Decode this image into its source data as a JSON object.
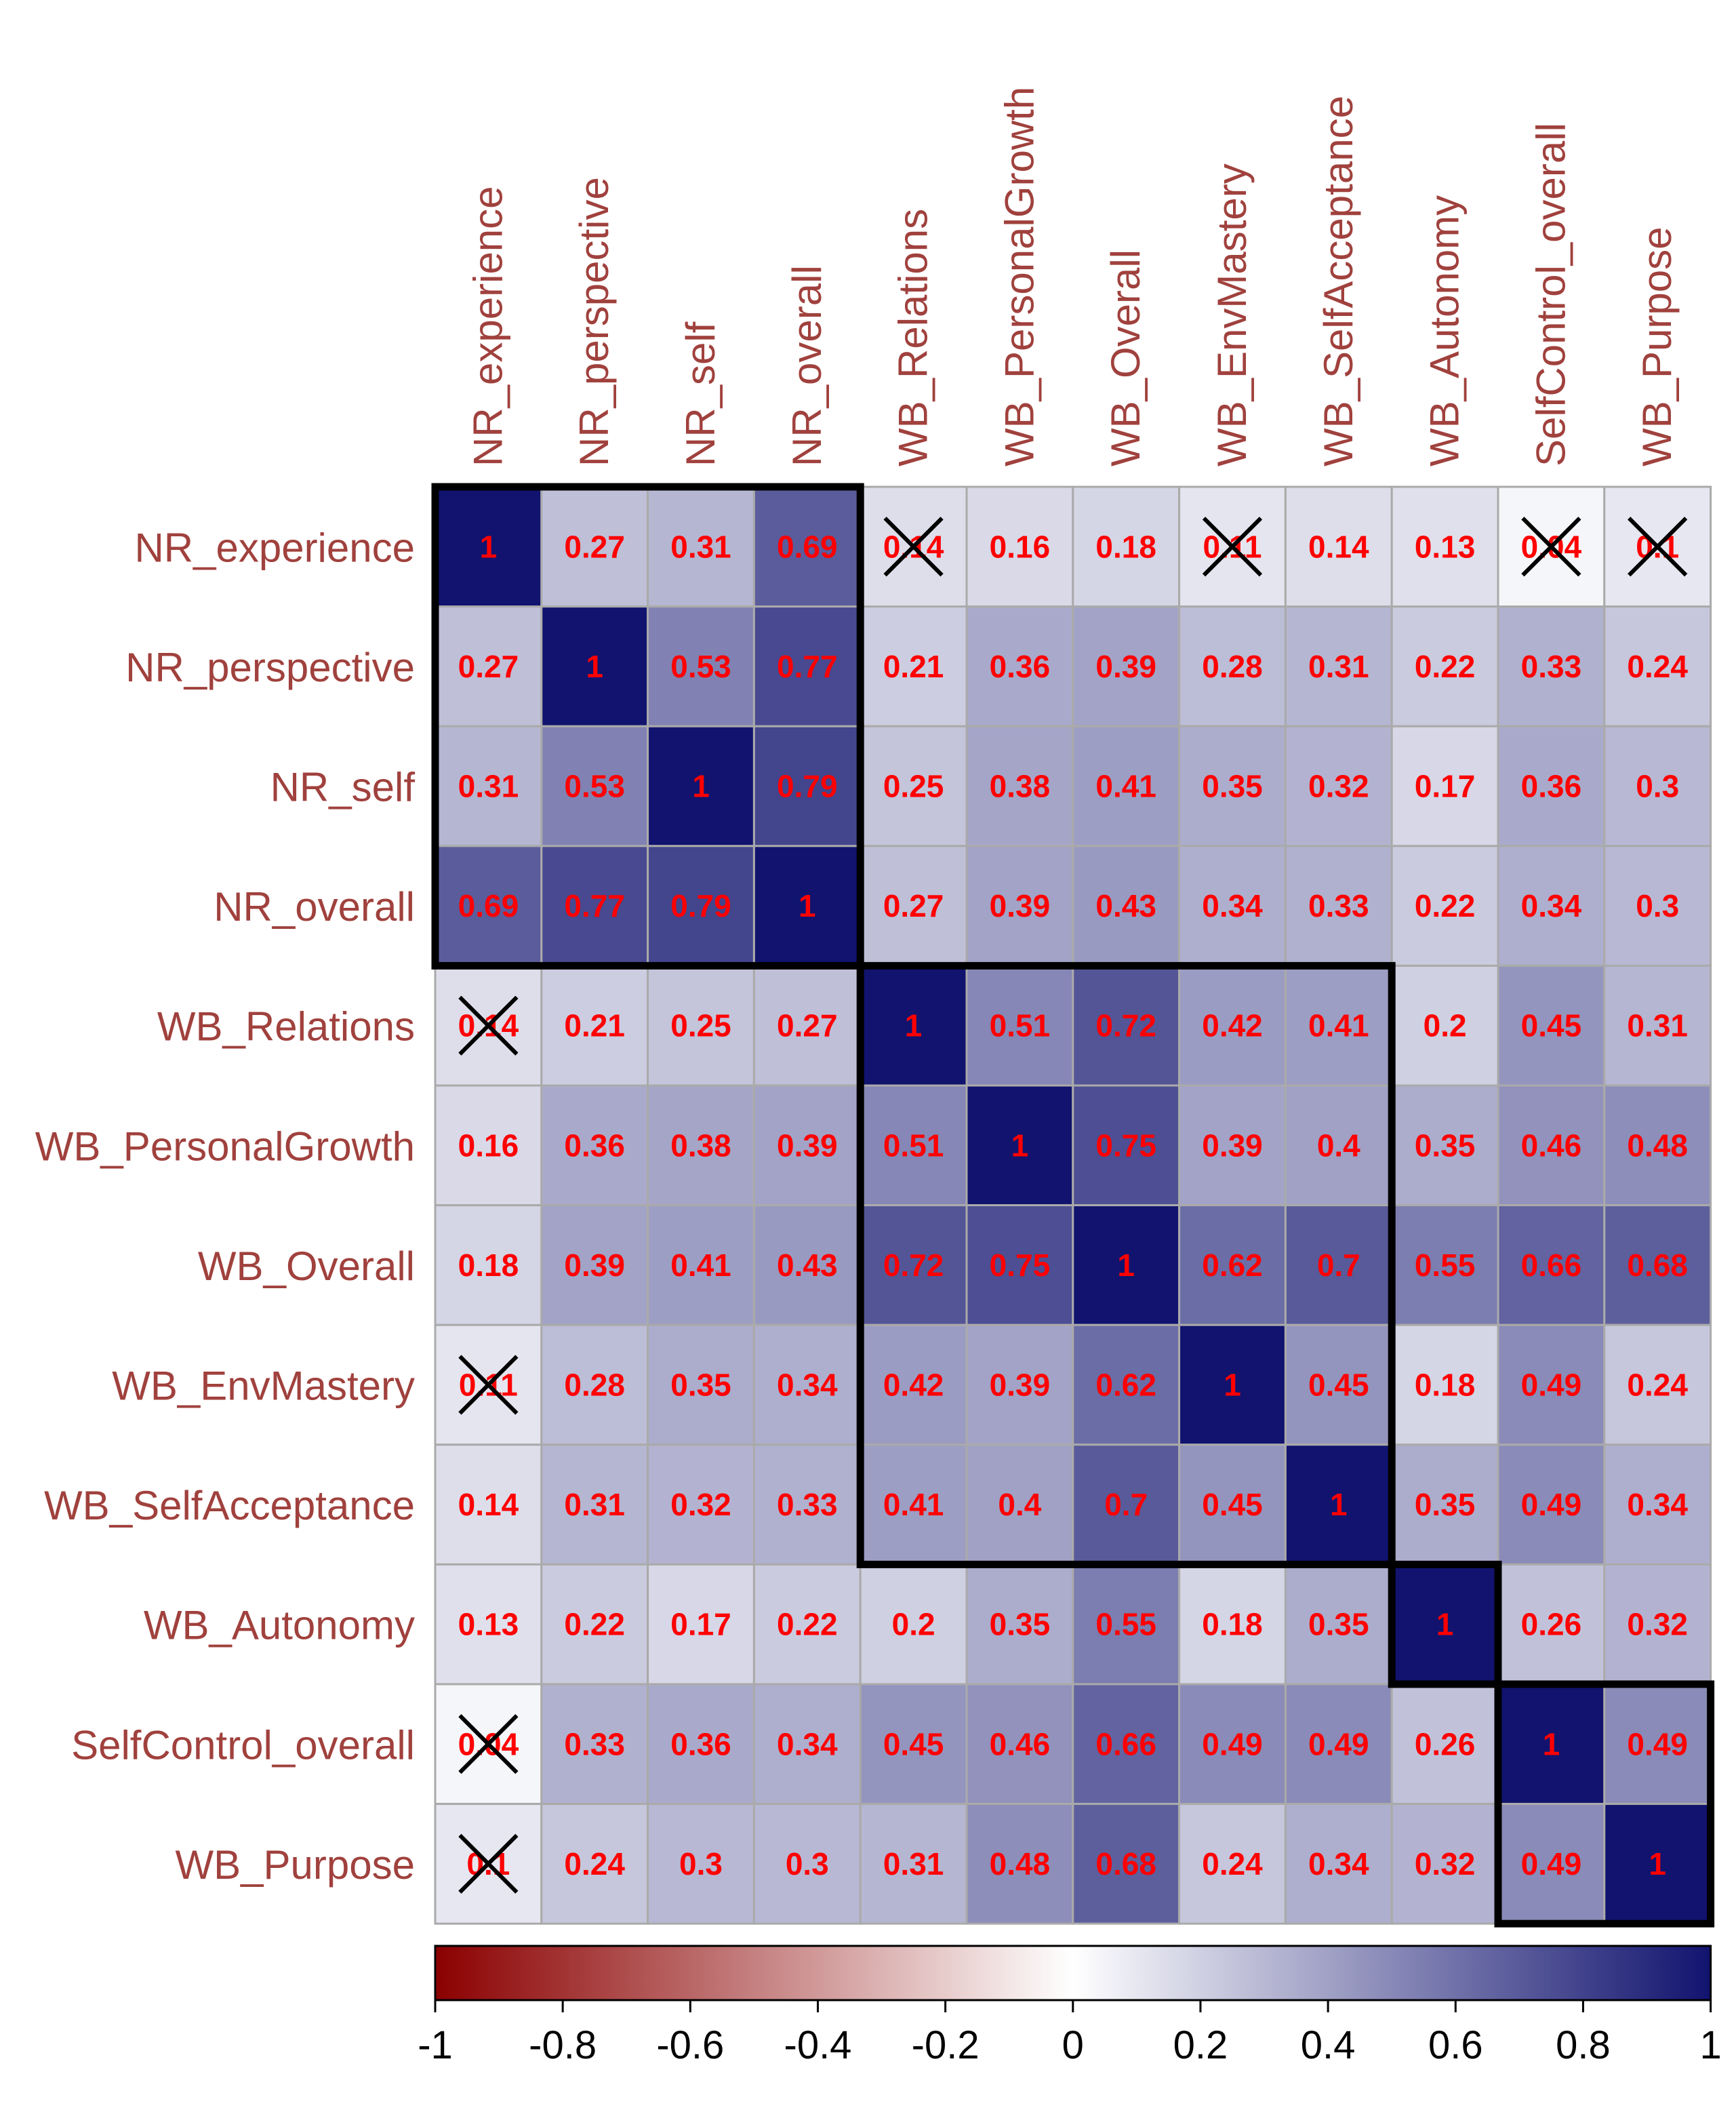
{
  "chart_data": {
    "type": "heatmap",
    "title": "",
    "variables": [
      "NR_experience",
      "NR_perspective",
      "NR_self",
      "NR_overall",
      "WB_Relations",
      "WB_PersonalGrowth",
      "WB_Overall",
      "WB_EnvMastery",
      "WB_SelfAcceptance",
      "WB_Autonomy",
      "SelfControl_overall",
      "WB_Purpose"
    ],
    "matrix": [
      [
        1,
        0.27,
        0.31,
        0.69,
        0.14,
        0.16,
        0.18,
        0.11,
        0.14,
        0.13,
        0.04,
        0.1
      ],
      [
        0.27,
        1,
        0.53,
        0.77,
        0.21,
        0.36,
        0.39,
        0.28,
        0.31,
        0.22,
        0.33,
        0.24
      ],
      [
        0.31,
        0.53,
        1,
        0.79,
        0.25,
        0.38,
        0.41,
        0.35,
        0.32,
        0.17,
        0.36,
        0.3
      ],
      [
        0.69,
        0.77,
        0.79,
        1,
        0.27,
        0.39,
        0.43,
        0.34,
        0.33,
        0.22,
        0.34,
        0.3
      ],
      [
        0.14,
        0.21,
        0.25,
        0.27,
        1,
        0.51,
        0.72,
        0.42,
        0.41,
        0.2,
        0.45,
        0.31
      ],
      [
        0.16,
        0.36,
        0.38,
        0.39,
        0.51,
        1,
        0.75,
        0.39,
        0.4,
        0.35,
        0.46,
        0.48
      ],
      [
        0.18,
        0.39,
        0.41,
        0.43,
        0.72,
        0.75,
        1,
        0.62,
        0.7,
        0.55,
        0.66,
        0.68
      ],
      [
        0.11,
        0.28,
        0.35,
        0.34,
        0.42,
        0.39,
        0.62,
        1,
        0.45,
        0.18,
        0.49,
        0.24
      ],
      [
        0.14,
        0.31,
        0.32,
        0.33,
        0.41,
        0.4,
        0.7,
        0.45,
        1,
        0.35,
        0.49,
        0.34
      ],
      [
        0.13,
        0.22,
        0.17,
        0.22,
        0.2,
        0.35,
        0.55,
        0.18,
        0.35,
        1,
        0.26,
        0.32
      ],
      [
        0.04,
        0.33,
        0.36,
        0.34,
        0.45,
        0.46,
        0.66,
        0.49,
        0.49,
        0.26,
        1,
        0.49
      ],
      [
        0.1,
        0.24,
        0.3,
        0.3,
        0.31,
        0.48,
        0.68,
        0.24,
        0.34,
        0.32,
        0.49,
        1
      ]
    ],
    "non_significant": [
      [
        0,
        4
      ],
      [
        0,
        7
      ],
      [
        0,
        10
      ],
      [
        0,
        11
      ],
      [
        4,
        0
      ],
      [
        7,
        0
      ],
      [
        10,
        0
      ],
      [
        11,
        0
      ]
    ],
    "clusters": [
      {
        "start": 0,
        "end": 3
      },
      {
        "start": 4,
        "end": 8
      },
      {
        "start": 9,
        "end": 9
      },
      {
        "start": 10,
        "end": 11
      }
    ],
    "colorbar": {
      "range": [
        -1,
        1
      ],
      "ticks": [
        "-1",
        "-0.8",
        "-0.6",
        "-0.4",
        "-0.2",
        "0",
        "0.2",
        "0.4",
        "0.6",
        "0.8",
        "1"
      ],
      "colors": {
        "negative": "#8b0000",
        "zero": "#ffffff",
        "positive": "#11136f"
      }
    },
    "text_color": "#ff0000",
    "label_color": "#a0413d",
    "grid_color": "#aaaaaa",
    "insignificant_marker": "cross"
  }
}
